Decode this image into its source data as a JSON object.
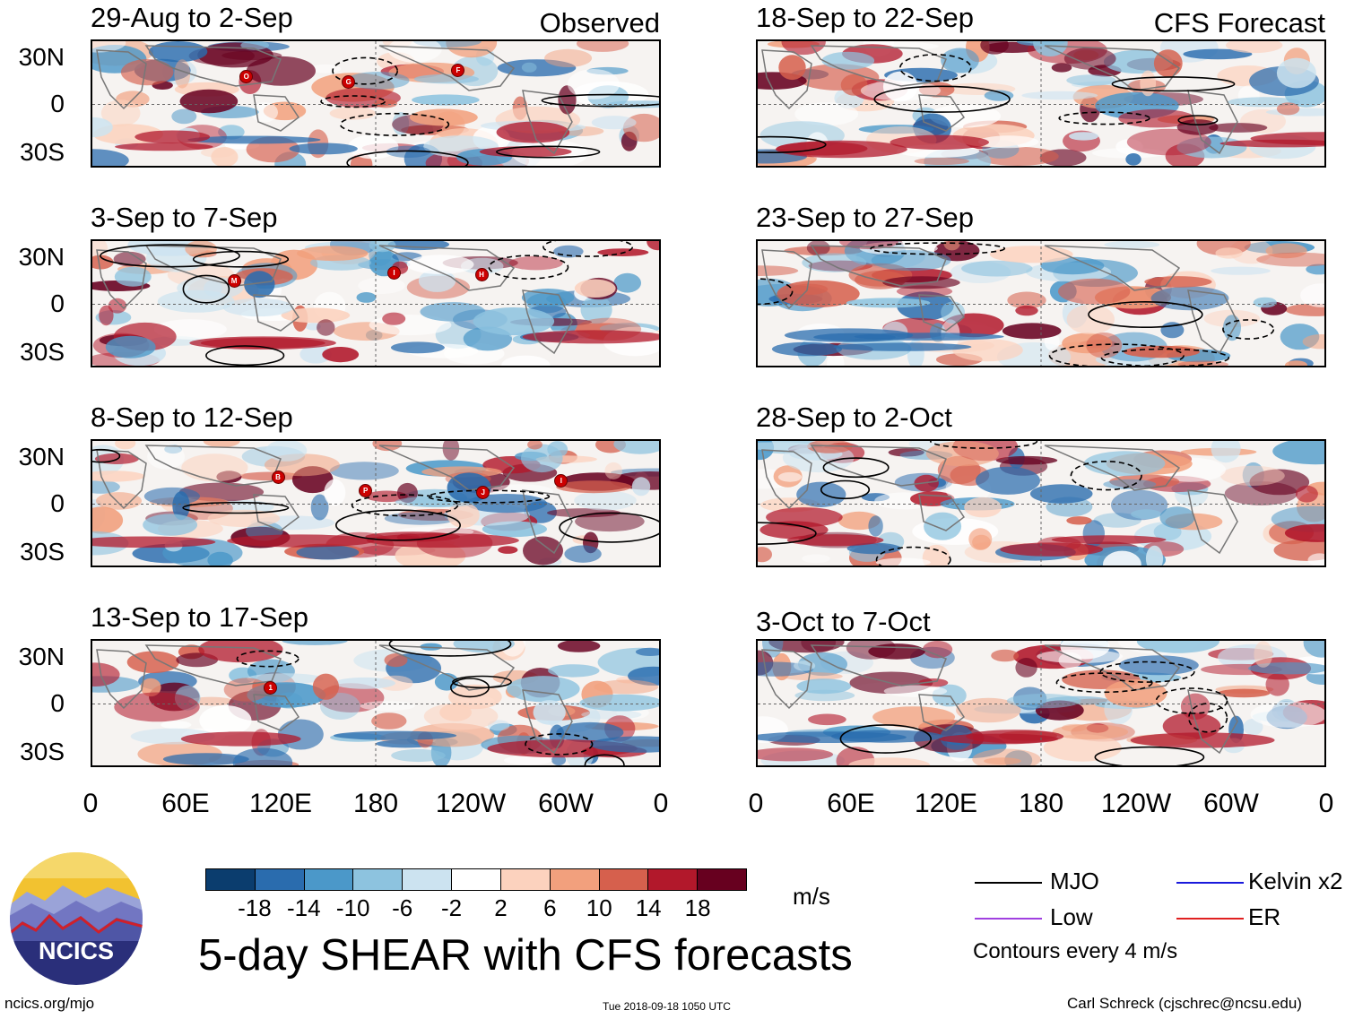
{
  "header": {
    "observed_label": "Observed",
    "forecast_label": "CFS Forecast"
  },
  "observed_panels": [
    {
      "title": "29-Aug to 2-Sep",
      "storms": [
        "O",
        "G",
        "F"
      ]
    },
    {
      "title": "3-Sep to 7-Sep",
      "storms": [
        "M",
        "I",
        "H"
      ]
    },
    {
      "title": "8-Sep to 12-Sep",
      "storms": [
        "B",
        "P",
        "J",
        "I"
      ]
    },
    {
      "title": "13-Sep to 17-Sep",
      "storms": [
        "1"
      ]
    }
  ],
  "forecast_panels": [
    {
      "title": "18-Sep to 22-Sep"
    },
    {
      "title": "23-Sep to 27-Sep"
    },
    {
      "title": "28-Sep to 2-Oct"
    },
    {
      "title": "3-Oct to 7-Oct"
    }
  ],
  "lat_labels": [
    "30N",
    "0",
    "30S"
  ],
  "lon_labels": [
    "0",
    "60E",
    "120E",
    "180",
    "120W",
    "60W",
    "0"
  ],
  "colorbar": {
    "labels": [
      "-18",
      "-14",
      "-10",
      "-6",
      "-2",
      "2",
      "6",
      "10",
      "14",
      "18"
    ],
    "colors": [
      "#0b3d6e",
      "#2a6cae",
      "#4b98c9",
      "#8dc3df",
      "#cce3f0",
      "#ffffff",
      "#fcd2be",
      "#f2a07d",
      "#d6604d",
      "#b2182b",
      "#67001f"
    ],
    "unit": "m/s"
  },
  "legend": {
    "items": [
      {
        "label": "MJO",
        "color": "#000000"
      },
      {
        "label": "Kelvin x2",
        "color": "#1a1adc"
      },
      {
        "label": "Low",
        "color": "#a040e0"
      },
      {
        "label": "ER",
        "color": "#e02020"
      }
    ],
    "note": "Contours every 4 m/s"
  },
  "logo": {
    "text": "NCICS"
  },
  "main_title": "5-day SHEAR with CFS forecasts",
  "footer": {
    "url": "ncics.org/mjo",
    "timestamp": "Tue 2018-09-18 1050 UTC",
    "author": "Carl Schreck (cjschrec@ncsu.edu)"
  }
}
